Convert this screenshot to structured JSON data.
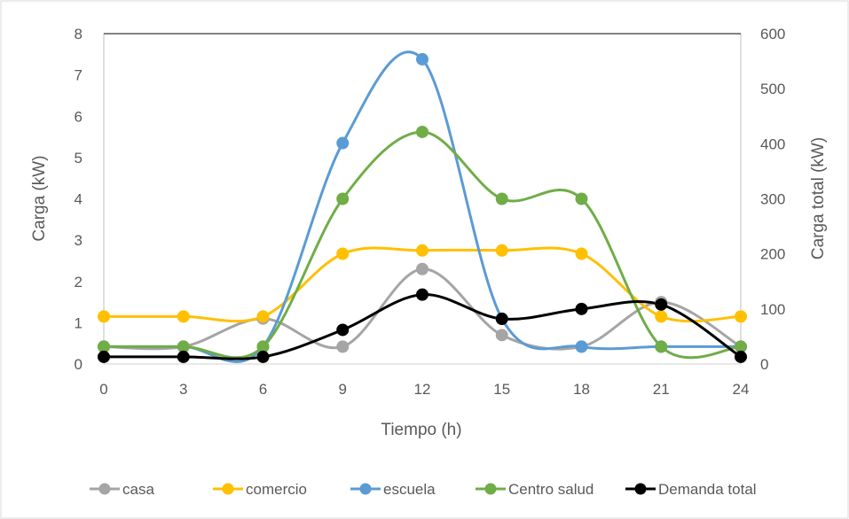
{
  "chart_data": {
    "type": "line",
    "smooth": true,
    "xlabel": "Tiempo (h)",
    "ylabel_left": "Carga (kW)",
    "ylabel_right": "Carga  total (kW)",
    "x": [
      0,
      3,
      6,
      9,
      12,
      15,
      18,
      21,
      24
    ],
    "x_ticks": [
      "0",
      "3",
      "6",
      "9",
      "12",
      "15",
      "18",
      "21",
      "24"
    ],
    "ylim_left": [
      0,
      8
    ],
    "y_ticks_left": [
      "0",
      "1",
      "2",
      "3",
      "4",
      "5",
      "6",
      "7",
      "8"
    ],
    "ylim_right": [
      0,
      600
    ],
    "y_ticks_right": [
      "0",
      "100",
      "200",
      "300",
      "400",
      "500",
      "600"
    ],
    "grid": "none",
    "legend_position": "bottom",
    "series": [
      {
        "name": "casa",
        "axis": "left",
        "color": "#a5a5a5",
        "values": [
          0.42,
          0.42,
          1.1,
          0.42,
          2.3,
          0.7,
          0.42,
          1.5,
          0.42
        ]
      },
      {
        "name": "comercio",
        "axis": "left",
        "color": "#ffc000",
        "values": [
          1.15,
          1.15,
          1.15,
          2.67,
          2.75,
          2.75,
          2.67,
          1.15,
          1.15
        ]
      },
      {
        "name": "escuela",
        "axis": "left",
        "color": "#5b9bd5",
        "values": [
          0.42,
          0.42,
          0.42,
          5.35,
          7.38,
          1.1,
          0.42,
          0.42,
          0.42
        ]
      },
      {
        "name": "Centro salud",
        "axis": "left",
        "color": "#70ad47",
        "values": [
          0.42,
          0.42,
          0.42,
          4.0,
          5.62,
          4.0,
          4.0,
          0.42,
          0.42
        ]
      },
      {
        "name": "Demanda total",
        "axis": "right",
        "color": "#000000",
        "values": [
          13,
          13,
          13,
          62,
          126,
          82,
          100,
          108,
          13
        ]
      }
    ]
  }
}
